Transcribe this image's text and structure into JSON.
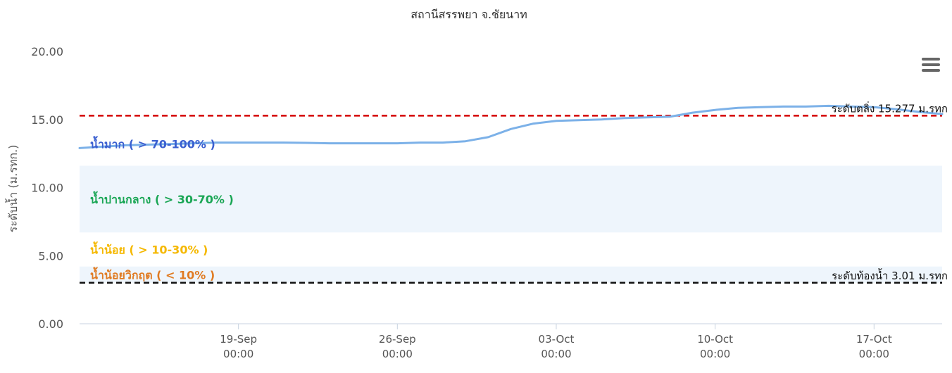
{
  "chart_data": {
    "type": "line",
    "title": "สถานีสรรพยา จ.ชัยนาท",
    "ylabel": "ระดับน้ำ (ม.รทก.)",
    "xlabel": "",
    "ylim": [
      0,
      20
    ],
    "y_ticks": [
      "0.00",
      "5.00",
      "10.00",
      "15.00",
      "20.00"
    ],
    "x_range": [
      "2024-09-12",
      "2024-10-20"
    ],
    "x_ticks": [
      {
        "date": "2024-09-19",
        "line1": "19-Sep",
        "line2": "00:00"
      },
      {
        "date": "2024-09-26",
        "line1": "26-Sep",
        "line2": "00:00"
      },
      {
        "date": "2024-10-03",
        "line1": "03-Oct",
        "line2": "00:00"
      },
      {
        "date": "2024-10-10",
        "line1": "10-Oct",
        "line2": "00:00"
      },
      {
        "date": "2024-10-17",
        "line1": "17-Oct",
        "line2": "00:00"
      }
    ],
    "bands": [
      {
        "label": "น้ำมาก ( > 70-100% )",
        "from": 11.6,
        "to": 15.277,
        "fill": "#ffffff",
        "text_color": "#3a5fd0"
      },
      {
        "label": "น้ำปานกลาง ( > 30-70% )",
        "from": 6.7,
        "to": 11.6,
        "fill": "#eef5fc",
        "text_color": "#1aa655"
      },
      {
        "label": "น้ำน้อย ( > 10-30% )",
        "from": 4.2,
        "to": 6.7,
        "fill": "#ffffff",
        "text_color": "#f5b800"
      },
      {
        "label": "น้ำน้อยวิกฤต ( < 10% )",
        "from": 3.01,
        "to": 4.2,
        "fill": "#eef5fc",
        "text_color": "#e07b22"
      }
    ],
    "reference_lines": [
      {
        "label": "ระดับตลิ่ง 15.277 ม.รทก",
        "value": 15.277,
        "color": "#d40000"
      },
      {
        "label": "ระดับท้องน้ำ 3.01 ม.รทก",
        "value": 3.01,
        "color": "#111111"
      }
    ],
    "series": [
      {
        "color": "#7cb1e8",
        "x": [
          "2024-09-12",
          "2024-09-13",
          "2024-09-14",
          "2024-09-15",
          "2024-09-16",
          "2024-09-17",
          "2024-09-18",
          "2024-09-19",
          "2024-09-20",
          "2024-09-21",
          "2024-09-22",
          "2024-09-23",
          "2024-09-24",
          "2024-09-25",
          "2024-09-26",
          "2024-09-27",
          "2024-09-28",
          "2024-09-29",
          "2024-09-30",
          "2024-10-01",
          "2024-10-02",
          "2024-10-03",
          "2024-10-04",
          "2024-10-05",
          "2024-10-06",
          "2024-10-07",
          "2024-10-08",
          "2024-10-09",
          "2024-10-10",
          "2024-10-11",
          "2024-10-12",
          "2024-10-13",
          "2024-10-14",
          "2024-10-15",
          "2024-10-16",
          "2024-10-17",
          "2024-10-18",
          "2024-10-19",
          "2024-10-20"
        ],
        "y": [
          12.9,
          13.0,
          13.1,
          13.15,
          13.2,
          13.25,
          13.3,
          13.3,
          13.3,
          13.3,
          13.28,
          13.25,
          13.25,
          13.25,
          13.25,
          13.3,
          13.3,
          13.4,
          13.7,
          14.3,
          14.7,
          14.9,
          14.95,
          15.0,
          15.1,
          15.15,
          15.2,
          15.5,
          15.7,
          15.85,
          15.9,
          15.95,
          15.95,
          16.0,
          15.95,
          15.9,
          15.75,
          15.55,
          15.4
        ]
      }
    ]
  }
}
